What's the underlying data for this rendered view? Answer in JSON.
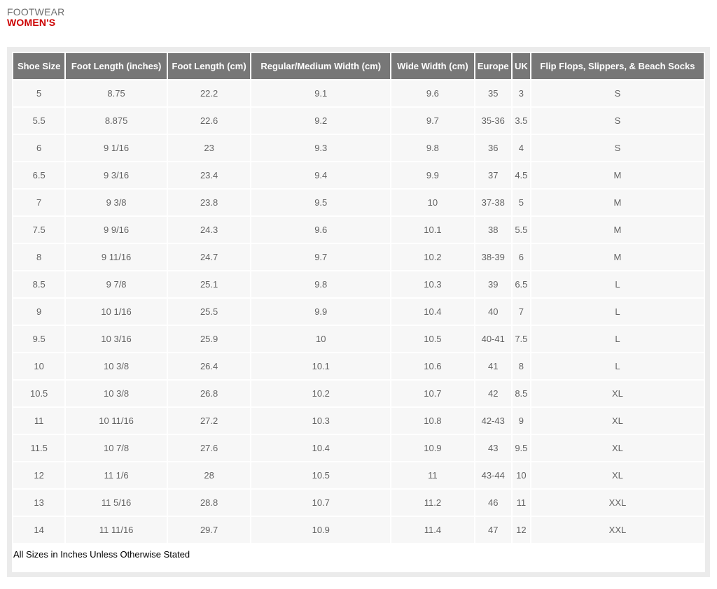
{
  "page": {
    "eyebrow": "FOOTWEAR",
    "title": "WOMEN'S",
    "footnote": "All Sizes in Inches Unless Otherwise Stated"
  },
  "colors": {
    "title_red": "#cc0000",
    "header_bg": "#777777",
    "row_bg": "#f7f7f7",
    "panel_border": "#ebebeb",
    "cell_text": "#636363"
  },
  "table": {
    "headers": [
      "Shoe Size",
      "Foot Length (inches)",
      "Foot Length (cm)",
      "Regular/Medium Width (cm)",
      "Wide Width (cm)",
      "Europe",
      "UK",
      "Flip Flops, Slippers, & Beach Socks"
    ],
    "rows": [
      [
        "5",
        "8.75",
        "22.2",
        "9.1",
        "9.6",
        "35",
        "3",
        "S"
      ],
      [
        "5.5",
        "8.875",
        "22.6",
        "9.2",
        "9.7",
        "35-36",
        "3.5",
        "S"
      ],
      [
        "6",
        "9 1/16",
        "23",
        "9.3",
        "9.8",
        "36",
        "4",
        "S"
      ],
      [
        "6.5",
        "9 3/16",
        "23.4",
        "9.4",
        "9.9",
        "37",
        "4.5",
        "M"
      ],
      [
        "7",
        "9 3/8",
        "23.8",
        "9.5",
        "10",
        "37-38",
        "5",
        "M"
      ],
      [
        "7.5",
        "9 9/16",
        "24.3",
        "9.6",
        "10.1",
        "38",
        "5.5",
        "M"
      ],
      [
        "8",
        "9 11/16",
        "24.7",
        "9.7",
        "10.2",
        "38-39",
        "6",
        "M"
      ],
      [
        "8.5",
        "9 7/8",
        "25.1",
        "9.8",
        "10.3",
        "39",
        "6.5",
        "L"
      ],
      [
        "9",
        "10 1/16",
        "25.5",
        "9.9",
        "10.4",
        "40",
        "7",
        "L"
      ],
      [
        "9.5",
        "10 3/16",
        "25.9",
        "10",
        "10.5",
        "40-41",
        "7.5",
        "L"
      ],
      [
        "10",
        "10 3/8",
        "26.4",
        "10.1",
        "10.6",
        "41",
        "8",
        "L"
      ],
      [
        "10.5",
        "10 3/8",
        "26.8",
        "10.2",
        "10.7",
        "42",
        "8.5",
        "XL"
      ],
      [
        "11",
        "10 11/16",
        "27.2",
        "10.3",
        "10.8",
        "42-43",
        "9",
        "XL"
      ],
      [
        "11.5",
        "10 7/8",
        "27.6",
        "10.4",
        "10.9",
        "43",
        "9.5",
        "XL"
      ],
      [
        "12",
        "11 1/6",
        "28",
        "10.5",
        "11",
        "43-44",
        "10",
        "XL"
      ],
      [
        "13",
        "11 5/16",
        "28.8",
        "10.7",
        "11.2",
        "46",
        "11",
        "XXL"
      ],
      [
        "14",
        "11 11/16",
        "29.7",
        "10.9",
        "11.4",
        "47",
        "12",
        "XXL"
      ]
    ]
  }
}
